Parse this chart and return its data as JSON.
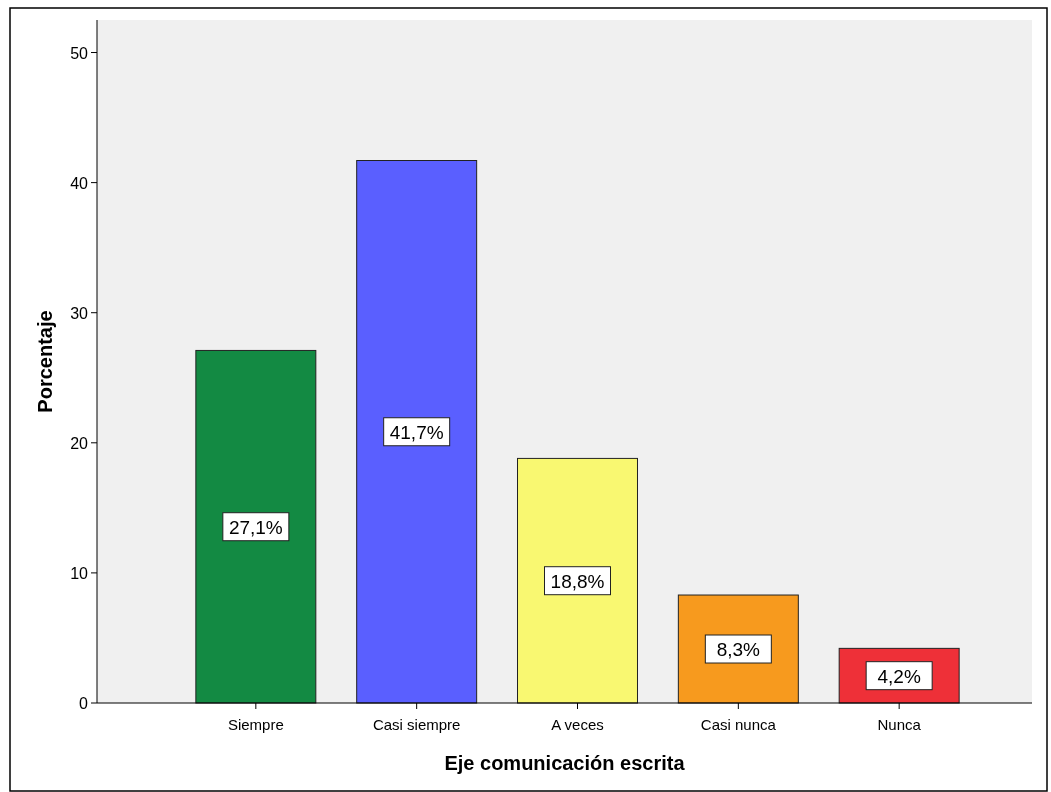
{
  "chart_data": {
    "type": "bar",
    "xlabel": "Eje comunicación escrita",
    "ylabel": "Porcentaje",
    "categories": [
      "Siempre",
      "Casi siempre",
      "A veces",
      "Casi nunca",
      "Nunca"
    ],
    "values": [
      27.1,
      41.7,
      18.8,
      8.3,
      4.2
    ],
    "colors": [
      "#138a43",
      "#5a5fff",
      "#f9f871",
      "#f79a1e",
      "#ee3038"
    ],
    "value_labels": [
      "27,1%",
      "41,7%",
      "18,8%",
      "8,3%",
      "4,2%"
    ],
    "ylim": [
      0,
      52.5
    ],
    "yticks": [
      0,
      10,
      20,
      30,
      40,
      50
    ],
    "grid": false
  }
}
